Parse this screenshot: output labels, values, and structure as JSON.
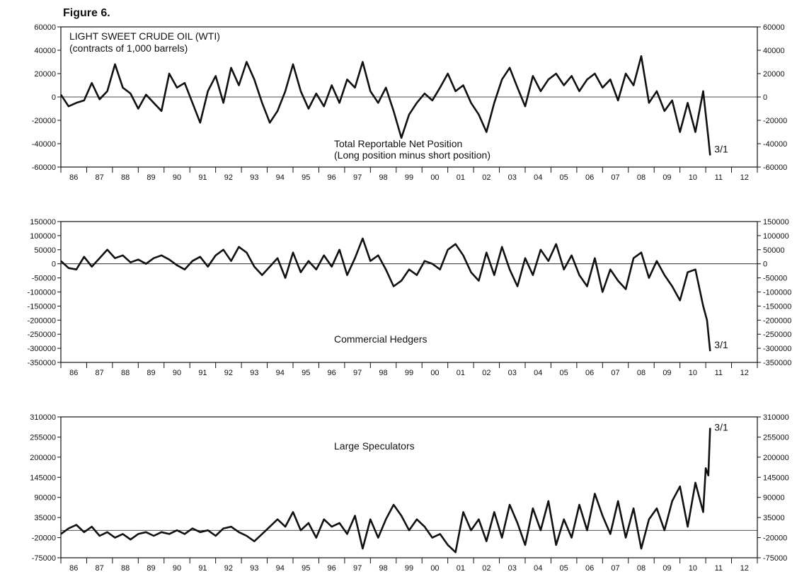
{
  "figure_title": "Figure 6.",
  "chart_data": [
    {
      "type": "line",
      "title": "LIGHT SWEET CRUDE OIL (WTI)",
      "subtitle": "(contracts of 1,000 barrels)",
      "annotation_line1": "Total Reportable Net Position",
      "annotation_line2": "(Long position minus short position)",
      "end_label": "3/1",
      "ylim": [
        -60000,
        60000
      ],
      "yticks": [
        -60000,
        -40000,
        -20000,
        0,
        20000,
        40000,
        60000
      ],
      "ytick_labels": [
        "-60000",
        "-40000",
        "-20000",
        "0",
        "20000",
        "40000",
        "60000"
      ],
      "zero_line": true,
      "x_categories": [
        "86",
        "87",
        "88",
        "89",
        "90",
        "91",
        "92",
        "93",
        "94",
        "95",
        "96",
        "97",
        "98",
        "99",
        "00",
        "01",
        "02",
        "03",
        "04",
        "05",
        "06",
        "07",
        "08",
        "09",
        "10",
        "11",
        "12"
      ],
      "x": [
        1986.0,
        1986.3,
        1986.6,
        1986.9,
        1987.2,
        1987.5,
        1987.8,
        1988.1,
        1988.4,
        1988.7,
        1989.0,
        1989.3,
        1989.6,
        1989.9,
        1990.2,
        1990.5,
        1990.8,
        1991.1,
        1991.4,
        1991.7,
        1992.0,
        1992.3,
        1992.6,
        1992.9,
        1993.2,
        1993.5,
        1993.8,
        1994.1,
        1994.4,
        1994.7,
        1995.0,
        1995.3,
        1995.6,
        1995.9,
        1996.2,
        1996.5,
        1996.8,
        1997.1,
        1997.4,
        1997.7,
        1998.0,
        1998.3,
        1998.6,
        1998.9,
        1999.2,
        1999.5,
        1999.8,
        2000.1,
        2000.4,
        2000.7,
        2001.0,
        2001.3,
        2001.6,
        2001.9,
        2002.2,
        2002.5,
        2002.8,
        2003.1,
        2003.4,
        2003.7,
        2004.0,
        2004.3,
        2004.6,
        2004.9,
        2005.2,
        2005.5,
        2005.8,
        2006.1,
        2006.4,
        2006.7,
        2007.0,
        2007.3,
        2007.6,
        2007.9,
        2008.2,
        2008.5,
        2008.8,
        2009.1,
        2009.4,
        2009.7,
        2010.0,
        2010.3,
        2010.6,
        2010.9,
        2011.1,
        2011.17
      ],
      "values": [
        2000,
        -8000,
        -5000,
        -3000,
        12000,
        -2000,
        5000,
        28000,
        8000,
        3000,
        -10000,
        2000,
        -5000,
        -12000,
        20000,
        8000,
        12000,
        -5000,
        -22000,
        5000,
        18000,
        -5000,
        25000,
        10000,
        30000,
        15000,
        -5000,
        -22000,
        -12000,
        5000,
        28000,
        5000,
        -10000,
        3000,
        -8000,
        10000,
        -5000,
        15000,
        8000,
        30000,
        5000,
        -5000,
        8000,
        -12000,
        -35000,
        -15000,
        -5000,
        3000,
        -3000,
        8000,
        20000,
        5000,
        10000,
        -5000,
        -15000,
        -30000,
        -5000,
        15000,
        25000,
        8000,
        -8000,
        18000,
        5000,
        15000,
        20000,
        10000,
        18000,
        5000,
        15000,
        20000,
        8000,
        15000,
        -3000,
        20000,
        10000,
        35000,
        -5000,
        5000,
        -12000,
        -3000,
        -30000,
        -5000,
        -30000,
        5000,
        -35000,
        -50000
      ]
    },
    {
      "type": "line",
      "title": "",
      "annotation_line1": "Commercial Hedgers",
      "end_label": "3/1",
      "ylim": [
        -350000,
        150000
      ],
      "yticks": [
        -350000,
        -300000,
        -250000,
        -200000,
        -150000,
        -100000,
        -50000,
        0,
        50000,
        100000,
        150000
      ],
      "ytick_labels": [
        "-350000",
        "-300000",
        "-250000",
        "-200000",
        "-150000",
        "-100000",
        "-50000",
        "0",
        "50000",
        "100000",
        "150000"
      ],
      "ytick_labels_right": [
        "-350000",
        "-300000",
        "-250000",
        "-200000",
        "-150000",
        "-100000",
        "-50000",
        "0",
        "50000",
        "100000",
        "150000"
      ],
      "zero_line": true,
      "x_categories": [
        "86",
        "87",
        "88",
        "89",
        "90",
        "91",
        "92",
        "93",
        "94",
        "95",
        "96",
        "97",
        "98",
        "99",
        "00",
        "01",
        "02",
        "03",
        "04",
        "05",
        "06",
        "07",
        "08",
        "09",
        "10",
        "11",
        "12"
      ],
      "x": [
        1986.0,
        1986.3,
        1986.6,
        1986.9,
        1987.2,
        1987.5,
        1987.8,
        1988.1,
        1988.4,
        1988.7,
        1989.0,
        1989.3,
        1989.6,
        1989.9,
        1990.2,
        1990.5,
        1990.8,
        1991.1,
        1991.4,
        1991.7,
        1992.0,
        1992.3,
        1992.6,
        1992.9,
        1993.2,
        1993.5,
        1993.8,
        1994.1,
        1994.4,
        1994.7,
        1995.0,
        1995.3,
        1995.6,
        1995.9,
        1996.2,
        1996.5,
        1996.8,
        1997.1,
        1997.4,
        1997.7,
        1998.0,
        1998.3,
        1998.6,
        1998.9,
        1999.2,
        1999.5,
        1999.8,
        2000.1,
        2000.4,
        2000.7,
        2001.0,
        2001.3,
        2001.6,
        2001.9,
        2002.2,
        2002.5,
        2002.8,
        2003.1,
        2003.4,
        2003.7,
        2004.0,
        2004.3,
        2004.6,
        2004.9,
        2005.2,
        2005.5,
        2005.8,
        2006.1,
        2006.4,
        2006.7,
        2007.0,
        2007.3,
        2007.6,
        2007.9,
        2008.2,
        2008.5,
        2008.8,
        2009.1,
        2009.4,
        2009.7,
        2010.0,
        2010.3,
        2010.6,
        2010.9,
        2011.05,
        2011.17
      ],
      "values": [
        10000,
        -15000,
        -20000,
        25000,
        -10000,
        20000,
        50000,
        20000,
        30000,
        5000,
        15000,
        0,
        20000,
        30000,
        15000,
        -5000,
        -20000,
        10000,
        25000,
        -10000,
        30000,
        50000,
        10000,
        60000,
        40000,
        -10000,
        -40000,
        -10000,
        20000,
        -50000,
        40000,
        -30000,
        10000,
        -20000,
        30000,
        -10000,
        50000,
        -40000,
        20000,
        90000,
        10000,
        30000,
        -20000,
        -80000,
        -60000,
        -20000,
        -40000,
        10000,
        0,
        -20000,
        50000,
        70000,
        30000,
        -30000,
        -60000,
        40000,
        -40000,
        60000,
        -20000,
        -80000,
        20000,
        -40000,
        50000,
        10000,
        70000,
        -20000,
        30000,
        -40000,
        -80000,
        20000,
        -100000,
        -20000,
        -60000,
        -90000,
        20000,
        40000,
        -50000,
        10000,
        -40000,
        -80000,
        -130000,
        -30000,
        -20000,
        -150000,
        -200000,
        -310000
      ]
    },
    {
      "type": "line",
      "title": "",
      "annotation_line1": "Large Speculators",
      "end_label": "3/1",
      "ylim": [
        -75000,
        310000
      ],
      "yticks": [
        -75000,
        -20000,
        35000,
        90000,
        145000,
        200000,
        255000,
        310000
      ],
      "ytick_labels": [
        "-75000",
        "-20000",
        "35000",
        "90000",
        "145000",
        "200000",
        "255000",
        "310000"
      ],
      "zero_line": true,
      "x_categories": [
        "86",
        "87",
        "88",
        "89",
        "90",
        "91",
        "92",
        "93",
        "94",
        "95",
        "96",
        "97",
        "98",
        "99",
        "00",
        "01",
        "02",
        "03",
        "04",
        "05",
        "06",
        "07",
        "08",
        "09",
        "10",
        "11",
        "12"
      ],
      "x": [
        1986.0,
        1986.3,
        1986.6,
        1986.9,
        1987.2,
        1987.5,
        1987.8,
        1988.1,
        1988.4,
        1988.7,
        1989.0,
        1989.3,
        1989.6,
        1989.9,
        1990.2,
        1990.5,
        1990.8,
        1991.1,
        1991.4,
        1991.7,
        1992.0,
        1992.3,
        1992.6,
        1992.9,
        1993.2,
        1993.5,
        1993.8,
        1994.1,
        1994.4,
        1994.7,
        1995.0,
        1995.3,
        1995.6,
        1995.9,
        1996.2,
        1996.5,
        1996.8,
        1997.1,
        1997.4,
        1997.7,
        1998.0,
        1998.3,
        1998.6,
        1998.9,
        1999.2,
        1999.5,
        1999.8,
        2000.1,
        2000.4,
        2000.7,
        2001.0,
        2001.3,
        2001.6,
        2001.9,
        2002.2,
        2002.5,
        2002.8,
        2003.1,
        2003.4,
        2003.7,
        2004.0,
        2004.3,
        2004.6,
        2004.9,
        2005.2,
        2005.5,
        2005.8,
        2006.1,
        2006.4,
        2006.7,
        2007.0,
        2007.3,
        2007.6,
        2007.9,
        2008.2,
        2008.5,
        2008.8,
        2009.1,
        2009.4,
        2009.7,
        2010.0,
        2010.3,
        2010.6,
        2010.9,
        2011.0,
        2011.1,
        2011.17
      ],
      "values": [
        -10000,
        5000,
        15000,
        -5000,
        10000,
        -15000,
        -5000,
        -20000,
        -10000,
        -25000,
        -10000,
        -5000,
        -15000,
        -5000,
        -10000,
        0,
        -10000,
        5000,
        -5000,
        0,
        -15000,
        5000,
        10000,
        -5000,
        -15000,
        -30000,
        -10000,
        10000,
        30000,
        10000,
        50000,
        0,
        20000,
        -20000,
        30000,
        10000,
        20000,
        -10000,
        40000,
        -50000,
        30000,
        -20000,
        30000,
        70000,
        40000,
        0,
        30000,
        10000,
        -20000,
        -10000,
        -40000,
        -60000,
        50000,
        0,
        30000,
        -30000,
        50000,
        -20000,
        70000,
        20000,
        -40000,
        60000,
        0,
        80000,
        -40000,
        30000,
        -20000,
        70000,
        0,
        100000,
        40000,
        -10000,
        80000,
        -20000,
        60000,
        -50000,
        30000,
        60000,
        0,
        80000,
        120000,
        10000,
        130000,
        50000,
        170000,
        150000,
        280000
      ]
    }
  ]
}
